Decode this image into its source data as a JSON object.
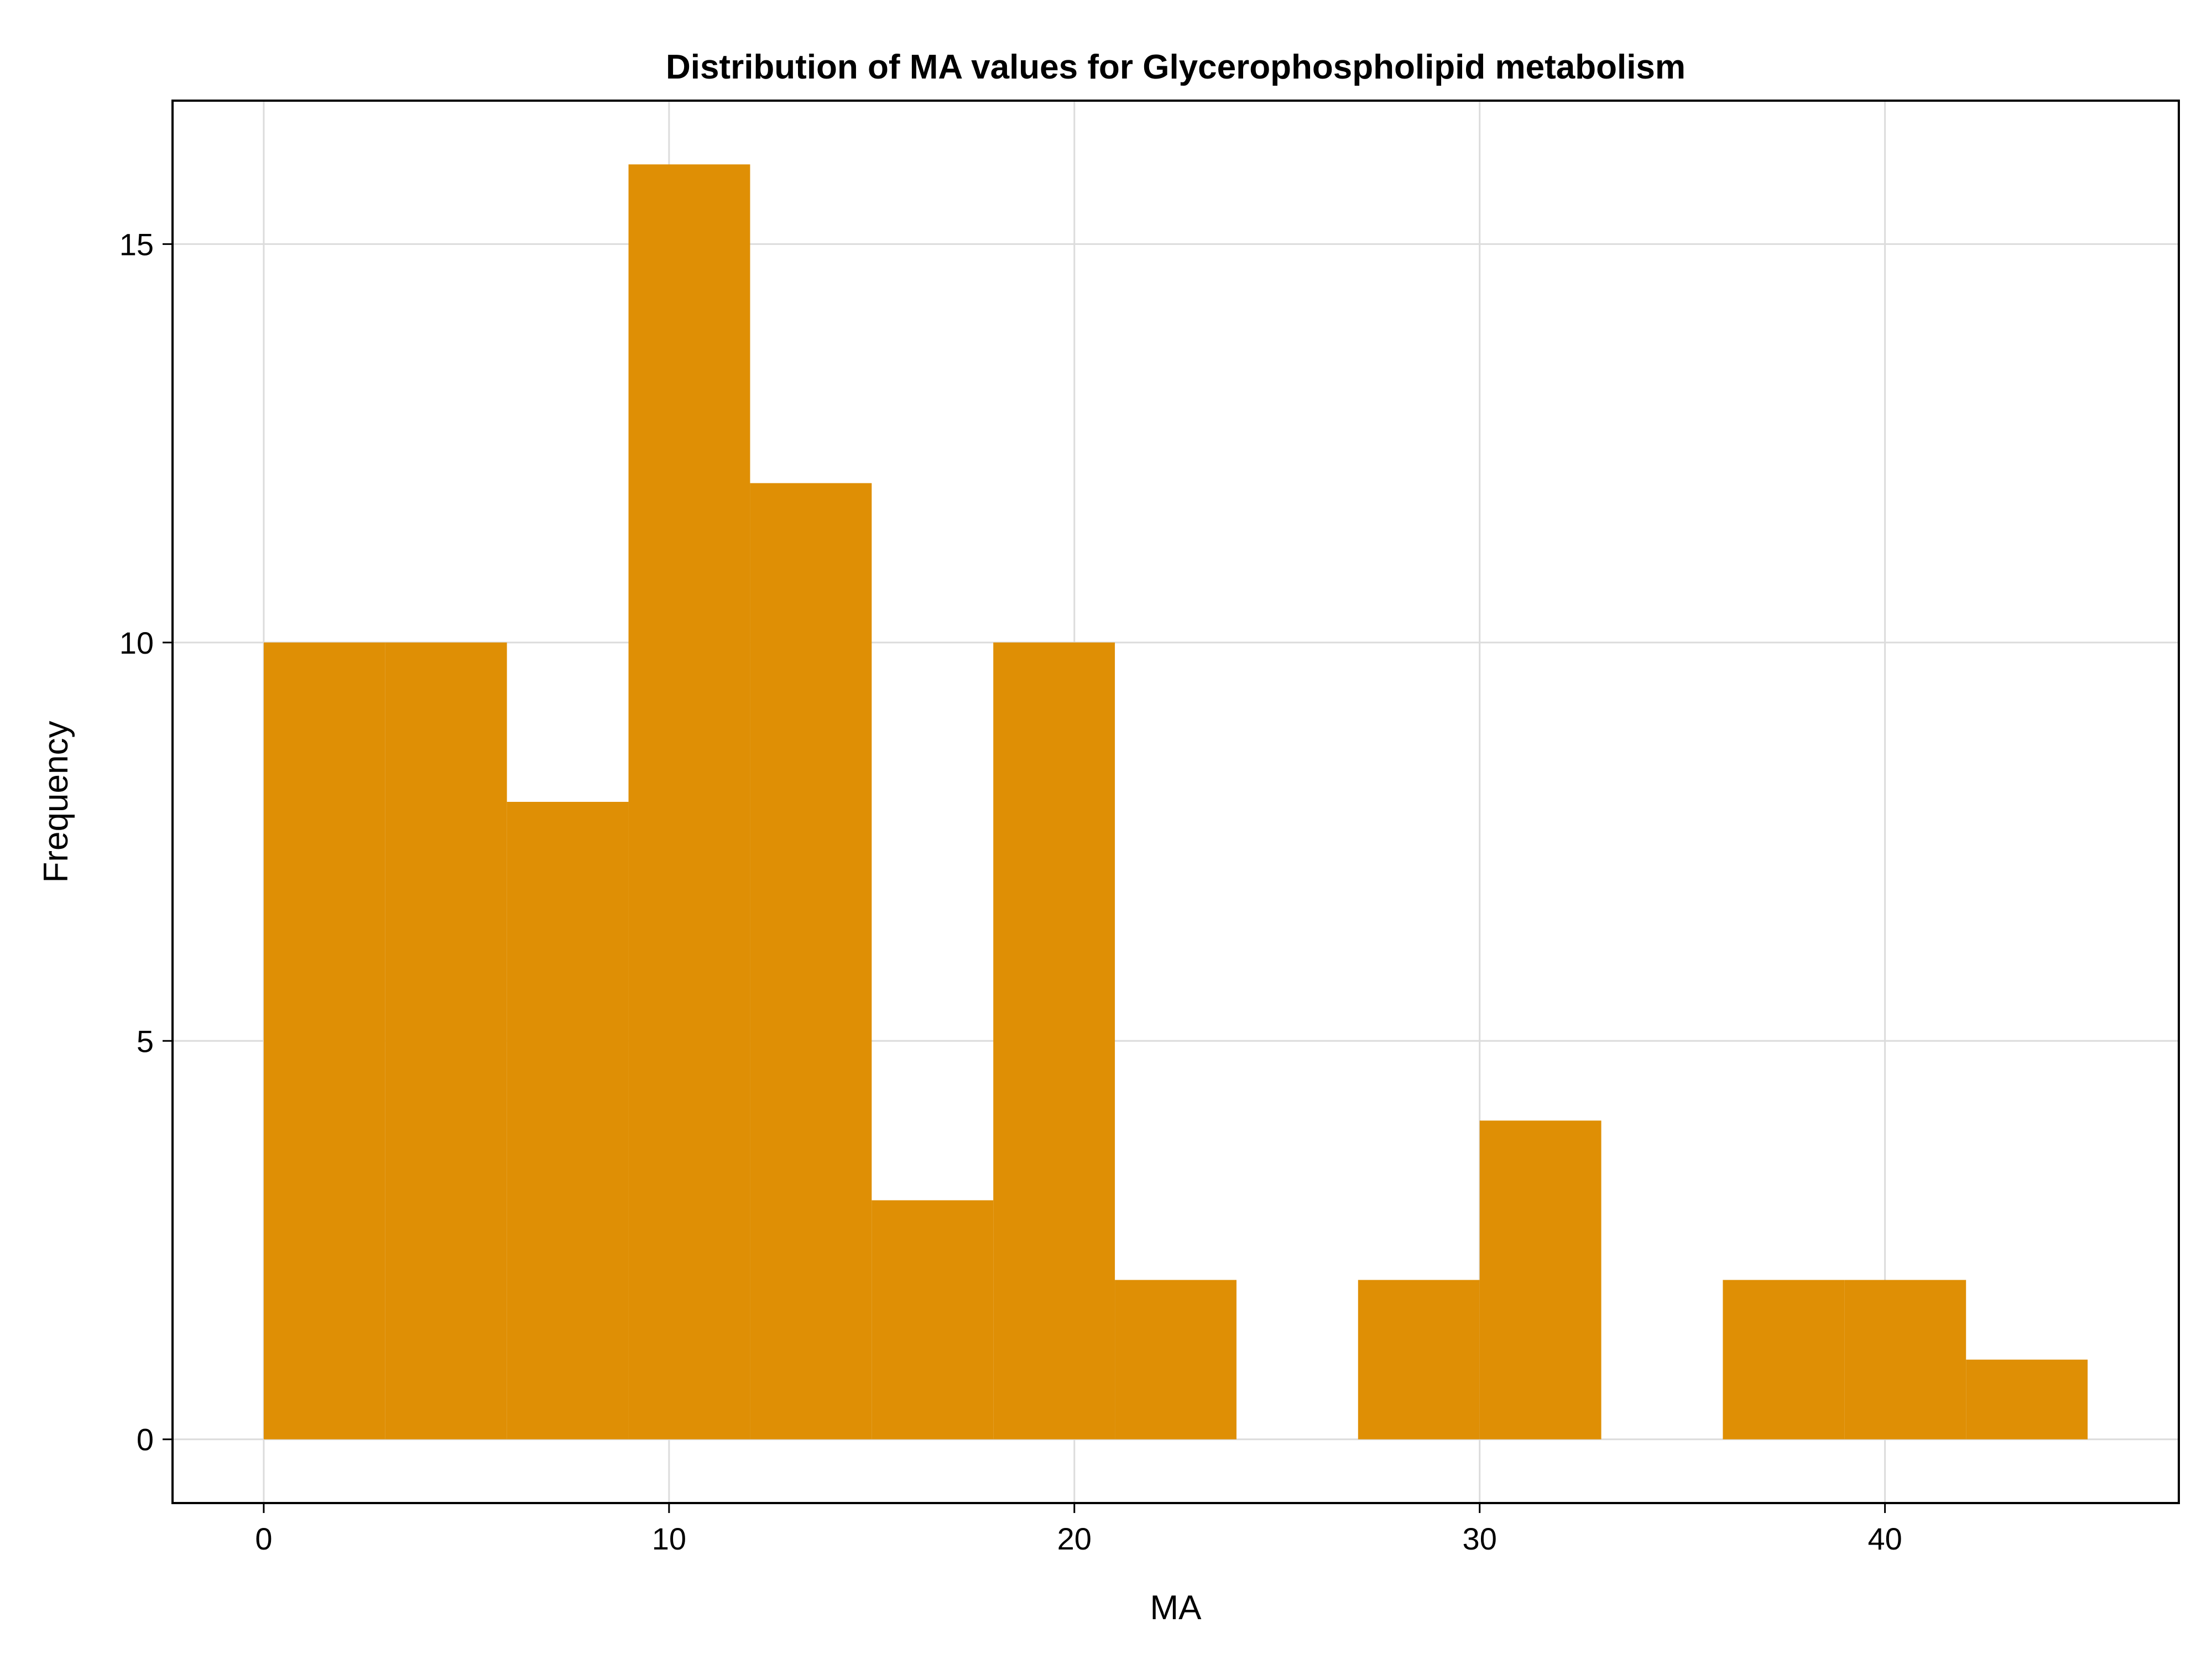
{
  "chart_data": {
    "type": "bar",
    "subtype": "histogram",
    "title": "Distribution of MA values for Glycerophospholipid metabolism",
    "xlabel": "MA",
    "ylabel": "Frequency",
    "bin_edges": [
      0,
      3,
      6,
      9,
      12,
      15,
      18,
      21,
      24,
      27,
      30,
      33,
      36,
      39,
      42,
      45
    ],
    "values": [
      10,
      10,
      8,
      16,
      12,
      3,
      10,
      2,
      0,
      2,
      4,
      0,
      2,
      2,
      1
    ],
    "xlim": [
      -2.25,
      47.25
    ],
    "ylim": [
      -0.8,
      16.8
    ],
    "x_ticks": [
      0,
      10,
      20,
      30,
      40
    ],
    "x_tick_labels": [
      "0",
      "10",
      "20",
      "30",
      "40"
    ],
    "y_ticks": [
      0,
      5,
      10,
      15
    ],
    "y_tick_labels": [
      "0",
      "5",
      "10",
      "15"
    ],
    "grid": true,
    "colors": {
      "bar": "#DF8F05",
      "grid": "#dcdcdc",
      "axis": "#000000"
    }
  }
}
